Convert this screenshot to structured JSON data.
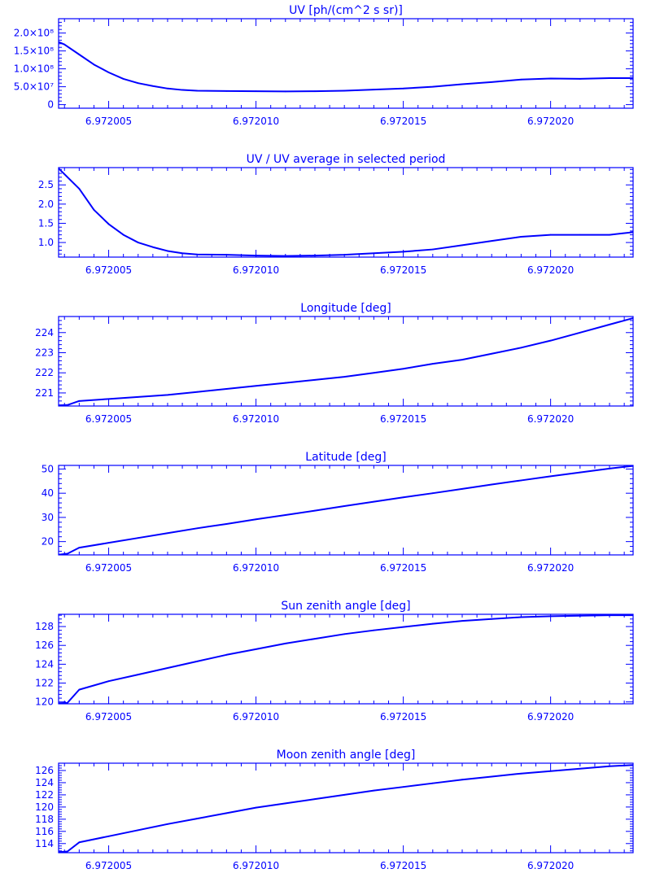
{
  "colors": {
    "line": "#0000ff",
    "background": "#ffffff"
  },
  "chart_data": [
    {
      "type": "line",
      "title": "UV [ph/(cm^2 s sr)]",
      "xlim": [
        6.9720033,
        6.9720228
      ],
      "ylim": [
        -10000000,
        240000000
      ],
      "x_ticks": [
        6.972005,
        6.97201,
        6.972015,
        6.97202
      ],
      "x_tick_labels": [
        "6.972005",
        "6.972010",
        "6.972015",
        "6.972020"
      ],
      "y_ticks": [
        0,
        50000000,
        100000000,
        150000000,
        200000000
      ],
      "y_tick_labels": [
        "0",
        "5.0×10⁷",
        "1.0×10⁸",
        "1.5×10⁸",
        "2.0×10⁸"
      ],
      "x": [
        6.9720033,
        6.9720035,
        6.972004,
        6.9720045,
        6.972005,
        6.9720055,
        6.972006,
        6.9720065,
        6.972007,
        6.9720075,
        6.972008,
        6.972009,
        6.97201,
        6.972011,
        6.972012,
        6.972013,
        6.972014,
        6.972015,
        6.972016,
        6.972017,
        6.972018,
        6.972019,
        6.97202,
        6.972021,
        6.972022,
        6.9720228
      ],
      "y": [
        175000000,
        168000000,
        140000000,
        112000000,
        90000000,
        72000000,
        60000000,
        52000000,
        45000000,
        41000000,
        39000000,
        38000000,
        37500000,
        37000000,
        37500000,
        39000000,
        42000000,
        45000000,
        50000000,
        57000000,
        63000000,
        70000000,
        73000000,
        72000000,
        74000000,
        74000000
      ]
    },
    {
      "type": "line",
      "title": "UV / UV average in selected period",
      "xlim": [
        6.9720033,
        6.9720228
      ],
      "ylim": [
        0.62,
        2.95
      ],
      "x_ticks": [
        6.972005,
        6.97201,
        6.972015,
        6.97202
      ],
      "x_tick_labels": [
        "6.972005",
        "6.972010",
        "6.972015",
        "6.972020"
      ],
      "y_ticks": [
        1.0,
        1.5,
        2.0,
        2.5
      ],
      "y_tick_labels": [
        "1.0",
        "1.5",
        "2.0",
        "2.5"
      ],
      "x": [
        6.9720033,
        6.972004,
        6.9720045,
        6.972005,
        6.9720055,
        6.972006,
        6.9720065,
        6.972007,
        6.9720075,
        6.972008,
        6.972009,
        6.97201,
        6.972011,
        6.972012,
        6.972013,
        6.972014,
        6.972015,
        6.972016,
        6.972017,
        6.972018,
        6.972019,
        6.97202,
        6.972021,
        6.972022,
        6.9720228
      ],
      "y": [
        2.93,
        2.4,
        1.85,
        1.48,
        1.2,
        1.0,
        0.88,
        0.78,
        0.72,
        0.69,
        0.68,
        0.66,
        0.65,
        0.66,
        0.68,
        0.72,
        0.76,
        0.82,
        0.93,
        1.04,
        1.15,
        1.2,
        1.2,
        1.2,
        1.27
      ]
    },
    {
      "type": "line",
      "title": "Longitude [deg]",
      "xlim": [
        6.9720033,
        6.9720228
      ],
      "ylim": [
        220.35,
        224.8
      ],
      "x_ticks": [
        6.972005,
        6.97201,
        6.972015,
        6.97202
      ],
      "x_tick_labels": [
        "6.972005",
        "6.972010",
        "6.972015",
        "6.972020"
      ],
      "y_ticks": [
        221,
        222,
        223,
        224
      ],
      "y_tick_labels": [
        "221",
        "222",
        "223",
        "224"
      ],
      "x": [
        6.9720033,
        6.9720036,
        6.972004,
        6.972005,
        6.972006,
        6.972007,
        6.972008,
        6.972009,
        6.97201,
        6.972011,
        6.972012,
        6.972013,
        6.972014,
        6.972015,
        6.972016,
        6.972017,
        6.972018,
        6.972019,
        6.97202,
        6.972021,
        6.972022,
        6.9720228
      ],
      "y": [
        220.38,
        220.4,
        220.6,
        220.7,
        220.8,
        220.9,
        221.05,
        221.2,
        221.35,
        221.5,
        221.65,
        221.8,
        222.0,
        222.2,
        222.45,
        222.65,
        222.95,
        223.25,
        223.6,
        224.0,
        224.4,
        224.72
      ]
    },
    {
      "type": "line",
      "title": "Latitude [deg]",
      "xlim": [
        6.9720033,
        6.9720228
      ],
      "ylim": [
        14.5,
        51.5
      ],
      "x_ticks": [
        6.972005,
        6.97201,
        6.972015,
        6.97202
      ],
      "x_tick_labels": [
        "6.972005",
        "6.972010",
        "6.972015",
        "6.972020"
      ],
      "y_ticks": [
        20,
        30,
        40,
        50
      ],
      "y_tick_labels": [
        "20",
        "30",
        "40",
        "50"
      ],
      "x": [
        6.9720033,
        6.9720036,
        6.972004,
        6.972005,
        6.972006,
        6.972007,
        6.972008,
        6.972009,
        6.97201,
        6.972011,
        6.972012,
        6.972013,
        6.972014,
        6.972015,
        6.972016,
        6.972017,
        6.972018,
        6.972019,
        6.97202,
        6.972021,
        6.972022,
        6.9720228
      ],
      "y": [
        14.6,
        15.0,
        17.5,
        19.5,
        21.5,
        23.5,
        25.5,
        27.3,
        29.2,
        31.0,
        32.8,
        34.7,
        36.5,
        38.3,
        40.0,
        41.8,
        43.6,
        45.3,
        47.0,
        48.6,
        50.2,
        51.3
      ]
    },
    {
      "type": "line",
      "title": "Sun zenith angle [deg]",
      "xlim": [
        6.9720033,
        6.9720228
      ],
      "ylim": [
        119.8,
        129.3
      ],
      "x_ticks": [
        6.972005,
        6.97201,
        6.972015,
        6.97202
      ],
      "x_tick_labels": [
        "6.972005",
        "6.972010",
        "6.972015",
        "6.972020"
      ],
      "y_ticks": [
        120,
        122,
        124,
        126,
        128
      ],
      "y_tick_labels": [
        "120",
        "122",
        "124",
        "126",
        "128"
      ],
      "x": [
        6.9720033,
        6.9720036,
        6.972004,
        6.972005,
        6.972006,
        6.972007,
        6.972008,
        6.972009,
        6.97201,
        6.972011,
        6.972012,
        6.972013,
        6.972014,
        6.972015,
        6.972016,
        6.972017,
        6.972018,
        6.972019,
        6.97202,
        6.972021,
        6.972022,
        6.9720228
      ],
      "y": [
        119.85,
        119.9,
        121.3,
        122.2,
        122.9,
        123.6,
        124.3,
        125.0,
        125.6,
        126.2,
        126.7,
        127.2,
        127.6,
        127.95,
        128.3,
        128.6,
        128.8,
        129.0,
        129.1,
        129.15,
        129.2,
        129.2
      ]
    },
    {
      "type": "line",
      "title": "Moon zenith angle [deg]",
      "xlim": [
        6.9720033,
        6.9720228
      ],
      "ylim": [
        112.5,
        127.2
      ],
      "x_ticks": [
        6.972005,
        6.97201,
        6.972015,
        6.97202
      ],
      "x_tick_labels": [
        "6.972005",
        "6.972010",
        "6.972015",
        "6.972020"
      ],
      "y_ticks": [
        114,
        116,
        118,
        120,
        122,
        124,
        126
      ],
      "y_tick_labels": [
        "114",
        "116",
        "118",
        "120",
        "122",
        "124",
        "126"
      ],
      "x": [
        6.9720033,
        6.9720036,
        6.972004,
        6.972005,
        6.972006,
        6.972007,
        6.972008,
        6.972009,
        6.97201,
        6.972011,
        6.972012,
        6.972013,
        6.972014,
        6.972015,
        6.972016,
        6.972017,
        6.972018,
        6.972019,
        6.97202,
        6.972021,
        6.972022,
        6.9720228
      ],
      "y": [
        112.6,
        112.7,
        114.2,
        115.2,
        116.2,
        117.2,
        118.1,
        119.0,
        119.9,
        120.6,
        121.3,
        122.0,
        122.7,
        123.3,
        123.9,
        124.5,
        125.0,
        125.5,
        125.9,
        126.3,
        126.7,
        126.9
      ]
    }
  ]
}
